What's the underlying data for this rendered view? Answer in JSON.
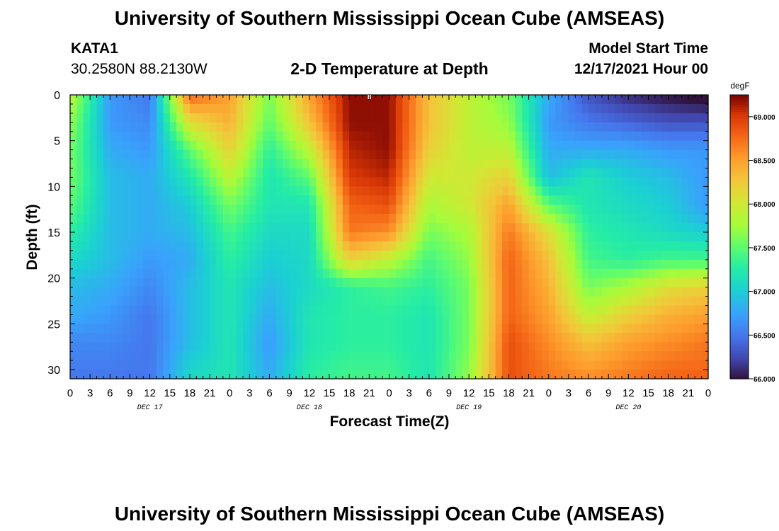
{
  "page": {
    "title": "University of Southern Mississippi Ocean Cube (AMSEAS)",
    "station": "KATA1",
    "location": "30.2580N  88.2130W",
    "start_label": "Model Start Time",
    "start_value": "12/17/2021 Hour 00",
    "footer_title": "University of Southern Mississippi Ocean Cube (AMSEAS)"
  },
  "chart_data": {
    "type": "heatmap",
    "title": "2-D Temperature at Depth",
    "xlabel": "Forecast Time(Z)",
    "ylabel": "Depth (ft)",
    "x_hours_range": [
      0,
      96
    ],
    "x_tick_labels": [
      "0",
      "3",
      "6",
      "9",
      "12",
      "15",
      "18",
      "21",
      "0",
      "3",
      "6",
      "9",
      "12",
      "15",
      "18",
      "21",
      "0",
      "3",
      "6",
      "9",
      "12",
      "15",
      "18",
      "21",
      "0",
      "3",
      "6",
      "9",
      "12",
      "15",
      "18",
      "21",
      "0"
    ],
    "date_labels": [
      {
        "label": "DEC 17",
        "hour": 12
      },
      {
        "label": "DEC 18",
        "hour": 36
      },
      {
        "label": "DEC 19",
        "hour": 60
      },
      {
        "label": "DEC 20",
        "hour": 84
      }
    ],
    "y_range": [
      0,
      31
    ],
    "y_reversed": true,
    "y_ticks": [
      0,
      5,
      10,
      15,
      20,
      25,
      30
    ],
    "colorbar": {
      "unit": "degF",
      "min": 66.0,
      "max": 69.25,
      "ticks": [
        "66.000",
        "66.500",
        "67.000",
        "67.500",
        "68.000",
        "68.500",
        "69.000"
      ],
      "colormap": "turbo"
    },
    "time_hours": [
      0,
      6,
      12,
      18,
      24,
      30,
      36,
      42,
      48,
      54,
      60,
      66,
      72,
      78,
      84,
      90,
      96
    ],
    "depth_ft": [
      0,
      3,
      6,
      9,
      12,
      15,
      18,
      21,
      24,
      27,
      31
    ],
    "temperature_degF": [
      [
        67.9,
        66.7,
        66.5,
        68.8,
        68.5,
        67.6,
        68.5,
        69.2,
        69.2,
        68.3,
        67.9,
        67.6,
        66.8,
        66.3,
        66.1,
        66.0,
        65.9
      ],
      [
        67.7,
        66.7,
        66.6,
        68.1,
        68.4,
        67.5,
        68.3,
        69.2,
        69.2,
        68.3,
        67.9,
        67.7,
        66.7,
        66.5,
        66.4,
        66.3,
        66.3
      ],
      [
        67.6,
        66.8,
        66.7,
        67.5,
        68.2,
        67.3,
        67.9,
        69.1,
        69.2,
        68.2,
        67.9,
        67.9,
        66.8,
        66.8,
        66.8,
        66.7,
        66.7
      ],
      [
        67.6,
        66.9,
        66.8,
        67.2,
        67.9,
        67.2,
        67.5,
        69.0,
        69.1,
        68.0,
        68.0,
        68.2,
        66.9,
        67.2,
        67.0,
        66.9,
        66.7
      ],
      [
        67.5,
        66.9,
        66.8,
        67.0,
        67.6,
        67.2,
        67.2,
        68.8,
        68.9,
        67.8,
        68.0,
        68.5,
        67.5,
        67.2,
        67.1,
        67.0,
        66.7
      ],
      [
        67.3,
        66.9,
        66.8,
        66.9,
        67.4,
        67.1,
        67.1,
        68.7,
        68.6,
        67.6,
        67.8,
        68.7,
        68.1,
        67.3,
        67.2,
        67.1,
        67.0
      ],
      [
        67.1,
        66.9,
        66.7,
        66.8,
        67.3,
        67.0,
        67.1,
        68.2,
        67.9,
        67.4,
        67.7,
        68.8,
        68.3,
        67.4,
        67.3,
        67.4,
        67.4
      ],
      [
        66.9,
        66.8,
        66.6,
        66.9,
        67.2,
        66.9,
        67.1,
        67.3,
        67.4,
        67.3,
        67.6,
        68.8,
        68.4,
        67.6,
        67.8,
        68.1,
        68.2
      ],
      [
        66.8,
        66.7,
        66.5,
        66.9,
        67.2,
        66.8,
        67.2,
        67.3,
        67.3,
        67.2,
        67.6,
        68.8,
        68.5,
        67.9,
        68.2,
        68.4,
        68.5
      ],
      [
        66.6,
        66.6,
        66.5,
        66.9,
        67.2,
        66.7,
        67.2,
        67.3,
        67.3,
        67.2,
        67.6,
        68.9,
        68.6,
        68.3,
        68.5,
        68.6,
        68.7
      ],
      [
        66.5,
        66.5,
        66.5,
        67.1,
        67.2,
        66.8,
        67.3,
        67.4,
        67.4,
        67.2,
        67.7,
        68.9,
        68.7,
        68.6,
        68.7,
        68.8,
        68.8
      ]
    ]
  }
}
